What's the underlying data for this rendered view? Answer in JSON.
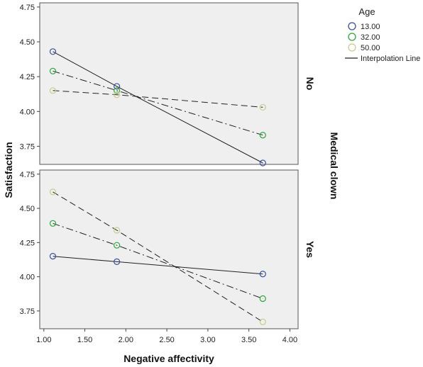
{
  "chart_data": {
    "type": "line",
    "xlabel": "Negative affectivity",
    "ylabel": "Satisfaction",
    "facet_label": "Medical clown",
    "legend_title": "Age",
    "legend_line_label": "Interpolation Line",
    "xlim": [
      0.95,
      4.1
    ],
    "x_ticks": [
      "1.00",
      "1.50",
      "2.00",
      "2.50",
      "3.00",
      "3.50",
      "4.00"
    ],
    "x_tick_values": [
      1.0,
      1.5,
      2.0,
      2.5,
      3.0,
      3.5,
      4.0
    ],
    "y_ticks": [
      "3.75",
      "4.00",
      "4.25",
      "4.50",
      "4.75"
    ],
    "y_tick_values": [
      3.75,
      4.0,
      4.25,
      4.5,
      4.75
    ],
    "panels": [
      {
        "label": "No",
        "ylim": [
          3.62,
          4.78
        ],
        "series": [
          {
            "name": "13.00",
            "color": "#3a4fa0",
            "dash": "solid",
            "x": [
              1.11,
              1.89,
              3.67
            ],
            "y": [
              4.43,
              4.18,
              3.63
            ]
          },
          {
            "name": "32.00",
            "color": "#2aa83a",
            "dash": "dashdot",
            "x": [
              1.11,
              1.89,
              3.67
            ],
            "y": [
              4.29,
              4.15,
              3.83
            ]
          },
          {
            "name": "50.00",
            "color": "#c9cc8a",
            "dash": "dashed",
            "x": [
              1.11,
              1.89,
              3.67
            ],
            "y": [
              4.15,
              4.12,
              4.03
            ]
          }
        ]
      },
      {
        "label": "Yes",
        "ylim": [
          3.62,
          4.78
        ],
        "series": [
          {
            "name": "13.00",
            "color": "#3a4fa0",
            "dash": "solid",
            "x": [
              1.11,
              1.89,
              3.67
            ],
            "y": [
              4.15,
              4.11,
              4.02
            ]
          },
          {
            "name": "32.00",
            "color": "#2aa83a",
            "dash": "dashdot",
            "x": [
              1.11,
              1.89,
              3.67
            ],
            "y": [
              4.39,
              4.23,
              3.84
            ]
          },
          {
            "name": "50.00",
            "color": "#c9cc8a",
            "dash": "dashed",
            "x": [
              1.11,
              1.89,
              3.67
            ],
            "y": [
              4.62,
              4.34,
              3.67
            ]
          }
        ]
      }
    ]
  },
  "colors": {
    "panel_bg": "#efefef",
    "panel_border": "#555555"
  }
}
